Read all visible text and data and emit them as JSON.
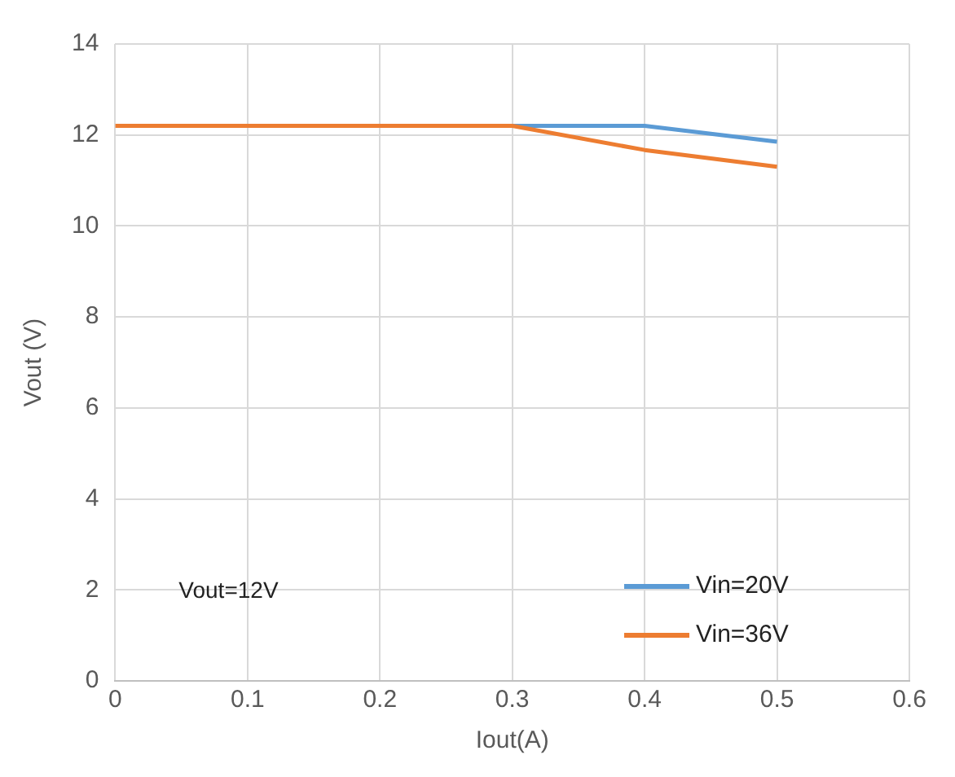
{
  "chart_data": {
    "type": "line",
    "xlabel": "Iout(A)",
    "ylabel": "Vout (V)",
    "annotations": [
      "Vout=12V"
    ],
    "x": [
      0,
      0.1,
      0.2,
      0.3,
      0.4,
      0.5
    ],
    "series": [
      {
        "name": "Vin=20V",
        "color": "#5b9bd5",
        "values": [
          null,
          null,
          null,
          12.2,
          12.2,
          11.85
        ]
      },
      {
        "name": "Vin=36V",
        "color": "#ed7d31",
        "values": [
          12.2,
          12.2,
          12.2,
          12.2,
          11.67,
          11.3
        ]
      }
    ],
    "xlim": [
      0,
      0.6
    ],
    "xticks": [
      0,
      0.1,
      0.2,
      0.3,
      0.4,
      0.5,
      0.6
    ],
    "ylim": [
      0,
      14
    ],
    "yticks": [
      0,
      2,
      4,
      6,
      8,
      10,
      12,
      14
    ],
    "grid": true,
    "legend": "bottom right",
    "marker": "none",
    "line_style": "solid"
  }
}
